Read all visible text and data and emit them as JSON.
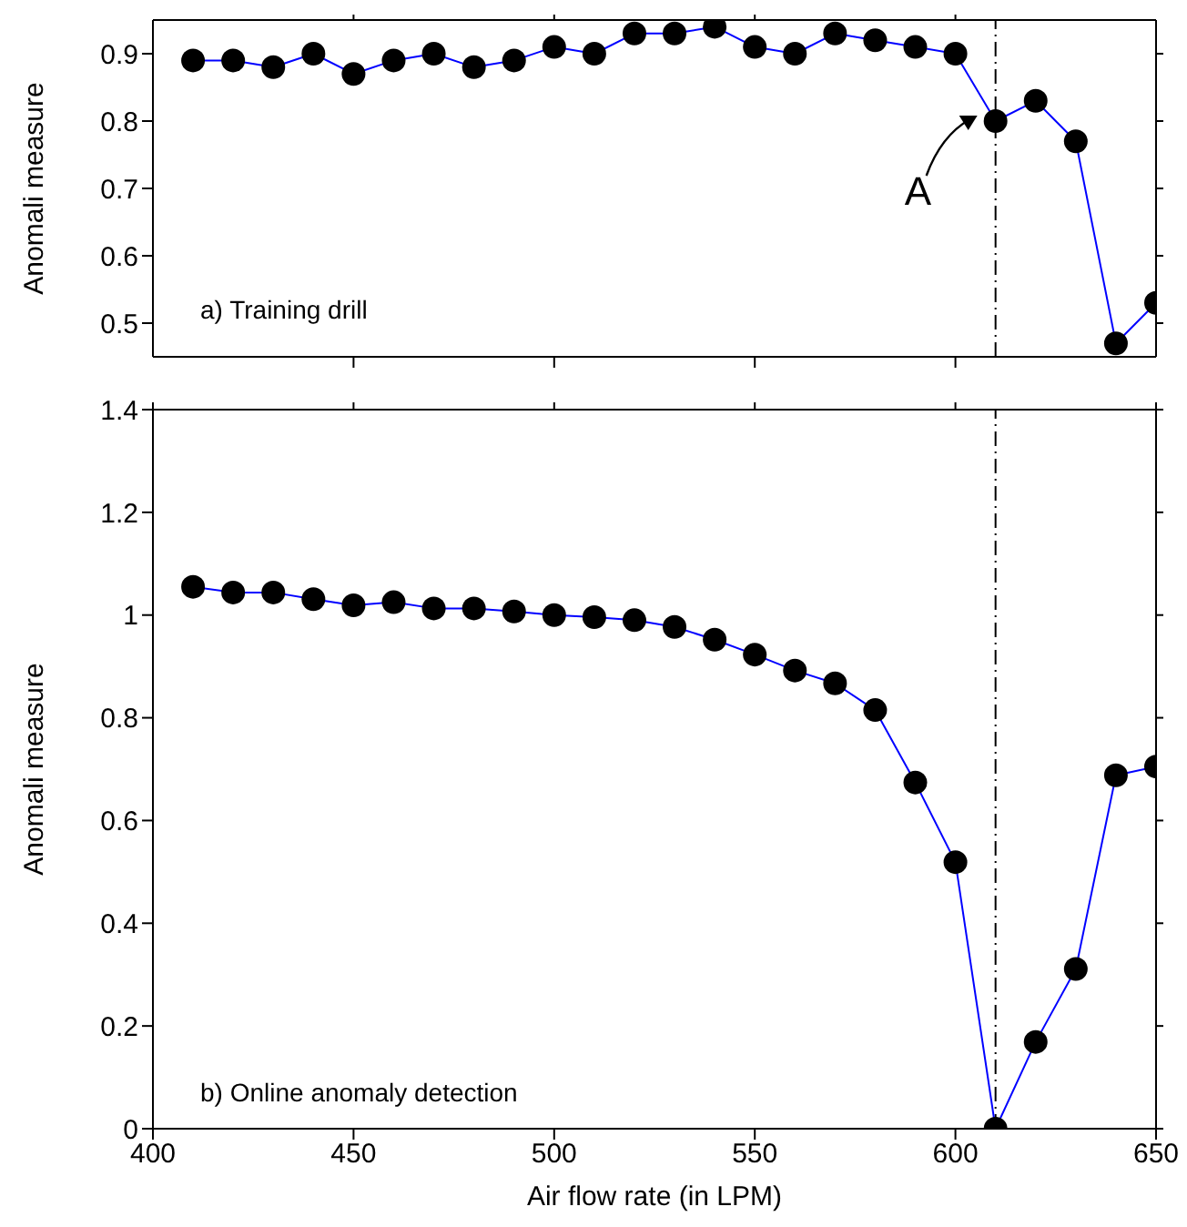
{
  "chart_data": [
    {
      "type": "line",
      "ylabel": "Anomali measure",
      "annotations": [
        "a) Training drill",
        {
          "text": "A",
          "x": 610,
          "y": 0.8
        }
      ],
      "x": [
        410,
        420,
        430,
        440,
        450,
        460,
        470,
        480,
        490,
        500,
        510,
        520,
        530,
        540,
        550,
        560,
        570,
        580,
        590,
        600,
        610,
        620,
        630,
        640,
        650
      ],
      "series": [
        {
          "color": "#0000ff",
          "colors": [
            "#000000",
            "#000000",
            "#000000",
            "#000000",
            "#000000",
            "#000000",
            "#000000",
            "#000000",
            "#000000",
            "#000000",
            "#000000",
            "#000000",
            "#000000",
            "#000000",
            "#000000",
            "#000000",
            "#000000",
            "#000000",
            "#000000",
            "#000000",
            "#000000",
            "#000000",
            "#000000",
            "#000000",
            "#000000"
          ],
          "values": [
            0.89,
            0.89,
            0.88,
            0.9,
            0.87,
            0.89,
            0.9,
            0.88,
            0.89,
            0.91,
            0.9,
            0.93,
            0.93,
            0.94,
            0.91,
            0.9,
            0.93,
            0.92,
            0.91,
            0.9,
            0.8,
            0.83,
            0.77,
            0.47,
            0.53
          ]
        }
      ],
      "xlim": [
        400,
        650
      ],
      "xticks": [
        {
          "value": 450,
          "label": null
        },
        {
          "value": 500,
          "label": null
        },
        {
          "value": 550,
          "label": null
        },
        {
          "value": 600,
          "label": null
        }
      ],
      "ylim": [
        0.45,
        0.95
      ],
      "yticks": [
        0.5,
        0.6,
        0.7,
        0.8,
        0.9
      ],
      "tick_labels": "y",
      "marker": "circle",
      "line_style": "solid",
      "grid": false,
      "ref_lines": [
        {
          "axis": "x",
          "value": 610,
          "color": "#000000",
          "line_style": "dashdot"
        }
      ]
    },
    {
      "type": "line",
      "ylabel": "Anomali measure",
      "xlabel": "Air flow rate (in LPM)",
      "annotations": [
        "b) Online anomaly detection"
      ],
      "x": [
        410,
        420,
        430,
        440,
        450,
        460,
        470,
        480,
        490,
        500,
        510,
        520,
        530,
        540,
        550,
        560,
        570,
        580,
        590,
        600,
        610,
        620,
        630,
        640,
        650
      ],
      "series": [
        {
          "color": "#0000ff",
          "colors": [
            "#000000",
            "#000000",
            "#000000",
            "#000000",
            "#000000",
            "#000000",
            "#000000",
            "#000000",
            "#000000",
            "#000000",
            "#000000",
            "#000000",
            "#000000",
            "#000000",
            "#000000",
            "#000000",
            "#000000",
            "#000000",
            "#000000",
            "#000000",
            "#000000",
            "#000000",
            "#000000",
            "#000000",
            "#000000"
          ],
          "values": [
            1.055,
            1.044,
            1.044,
            1.031,
            1.019,
            1.025,
            1.013,
            1.013,
            1.007,
            1.0,
            0.996,
            0.99,
            0.977,
            0.952,
            0.923,
            0.892,
            0.867,
            0.815,
            0.674,
            0.519,
            0,
            0.169,
            0.311,
            0.688,
            0.705
          ]
        }
      ],
      "xlim": [
        400,
        650
      ],
      "xticks": [
        400,
        450,
        500,
        550,
        600,
        650
      ],
      "ylim": [
        0,
        1.4
      ],
      "yticks": [
        0,
        0.2,
        0.4,
        0.6,
        0.8,
        1,
        1.2,
        1.4
      ],
      "marker": "circle",
      "line_style": "solid",
      "grid": false,
      "ref_lines": [
        {
          "axis": "x",
          "value": 610,
          "color": "#000000",
          "line_style": "dashdot"
        }
      ]
    }
  ]
}
